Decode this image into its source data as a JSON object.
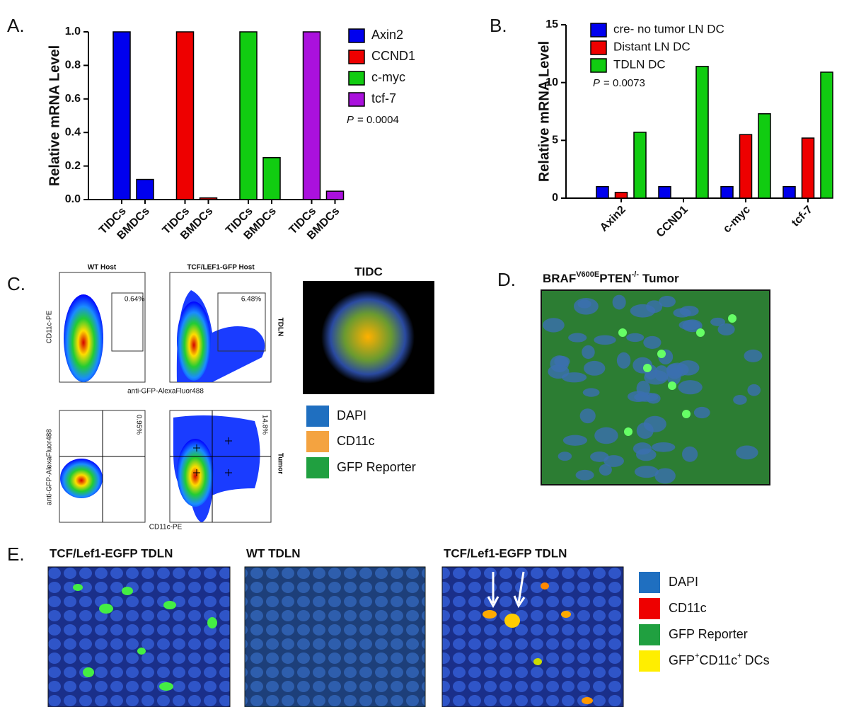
{
  "chart_data": [
    {
      "type": "bar",
      "ylabel": "Relative mRNA Level",
      "categories": [
        "TIDCs",
        "BMDCs",
        "TIDCs",
        "BMDCs",
        "TIDCs",
        "BMDCs",
        "TIDCs",
        "BMDCs"
      ],
      "series": [
        {
          "name": "Axin2",
          "color": "#0000ee",
          "values": [
            1.0,
            0.12,
            null,
            null,
            null,
            null,
            null,
            null
          ]
        },
        {
          "name": "CCND1",
          "color": "#ee0000",
          "values": [
            null,
            null,
            1.0,
            0.01,
            null,
            null,
            null,
            null
          ]
        },
        {
          "name": "c-myc",
          "color": "#11cc11",
          "values": [
            null,
            null,
            null,
            null,
            1.0,
            0.25,
            null,
            null
          ]
        },
        {
          "name": "tcf-7",
          "color": "#aa11dd",
          "values": [
            null,
            null,
            null,
            null,
            null,
            null,
            1.0,
            0.05
          ]
        }
      ],
      "ylim": [
        0,
        1.0
      ],
      "yticks": [
        {
          "value": 0,
          "label": "0.0"
        },
        {
          "value": 0.2,
          "label": "0.2"
        },
        {
          "value": 0.4,
          "label": "0.4"
        },
        {
          "value": 0.6,
          "label": "0.6"
        },
        {
          "value": 0.8,
          "label": "0.8"
        },
        {
          "value": 1.0,
          "label": "1.0"
        }
      ],
      "annotation": {
        "symbol": "P",
        "text": "= 0.0004"
      },
      "legend": "right"
    },
    {
      "type": "bar",
      "ylabel": "Relative mRNA Level",
      "categories": [
        "Axin2",
        "CCND1",
        "c-myc",
        "tcf-7"
      ],
      "series": [
        {
          "name": "cre- no tumor LN DC",
          "color": "#0000ee",
          "values": [
            1,
            1,
            1,
            1
          ]
        },
        {
          "name": "Distant LN DC",
          "color": "#ee0000",
          "values": [
            0.5,
            0,
            5.5,
            5.2
          ]
        },
        {
          "name": "TDLN DC",
          "color": "#11cc11",
          "values": [
            5.7,
            11.4,
            7.3,
            10.9
          ]
        }
      ],
      "ylim": [
        0,
        15
      ],
      "yticks": [
        0,
        5,
        10,
        15
      ],
      "annotation": {
        "symbol": "P",
        "text": "= 0.0073"
      },
      "legend": "upper left"
    }
  ],
  "panel_labels": [
    "A.",
    "B.",
    "C.",
    "D.",
    "E."
  ],
  "panel_c": {
    "flow": {
      "top_titles": [
        "WT Host",
        "TCF/LEF1-GFP Host"
      ],
      "top_gates": [
        "0.64%",
        "6.48%"
      ],
      "top_row_label": "TDLN",
      "top_ylabel": "CD11c-PE",
      "top_xlabel": "anti-GFP-AlexaFluor488",
      "bottom_gates": [
        "0.95%",
        "14.8%"
      ],
      "bottom_row_label": "Tumor",
      "bottom_ylabel": "anti-GFP-AlexaFluor488",
      "bottom_xlabel": "CD11c-PE"
    },
    "image_title": "TIDC",
    "legend": [
      "DAPI",
      "CD11c",
      "GFP Reporter"
    ]
  },
  "panel_d": {
    "title_parts": [
      "BRAF",
      "V600E",
      "PTEN",
      "-/-",
      "Tumor"
    ]
  },
  "panel_e": {
    "titles": [
      "TCF/Lef1-EGFP TDLN",
      "WT TDLN",
      "TCF/Lef1-EGFP TDLN"
    ],
    "legend": [
      "DAPI",
      "CD11c",
      "GFP Reporter"
    ],
    "legend_dc": [
      "GFP",
      "+",
      "CD11c",
      "+",
      "DCs"
    ]
  }
}
